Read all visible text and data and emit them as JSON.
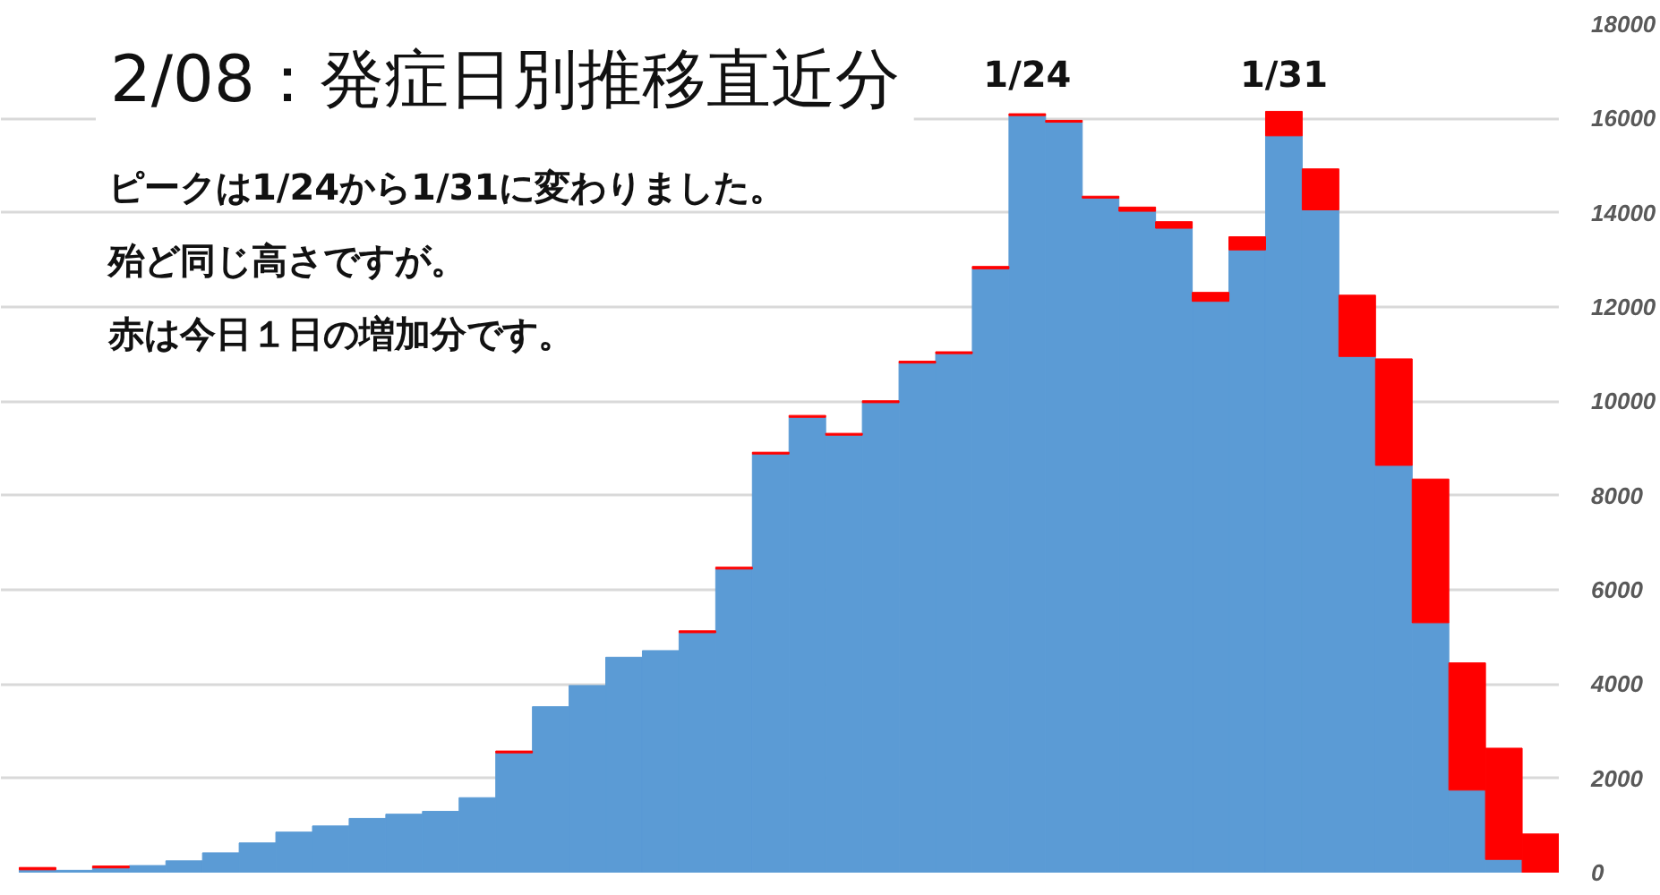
{
  "chart_data": {
    "type": "bar",
    "title": "2/08：発症日別推移直近分",
    "annotations": [
      "ピークは1/24から1/31に変わりました。",
      "殆ど同じ高さですが。",
      "赤は今日１日の増加分です。"
    ],
    "categories": [
      null,
      null,
      null,
      null,
      null,
      null,
      null,
      null,
      null,
      null,
      null,
      null,
      null,
      null,
      null,
      null,
      null,
      null,
      null,
      null,
      null,
      null,
      null,
      null,
      null,
      null,
      null,
      "1/24",
      null,
      null,
      null,
      null,
      null,
      null,
      "1/31",
      null,
      null,
      null,
      null,
      null,
      null,
      null
    ],
    "stacked": true,
    "series": [
      {
        "color": "#5b9bd5",
        "values": [
          60,
          50,
          100,
          150,
          250,
          420,
          630,
          860,
          990,
          1150,
          1240,
          1300,
          1590,
          2540,
          3520,
          3970,
          4570,
          4710,
          5090,
          6440,
          8880,
          9660,
          9280,
          9970,
          10810,
          11010,
          12810,
          16060,
          15920,
          14310,
          14030,
          13670,
          12120,
          13210,
          15630,
          14060,
          10950,
          8640,
          5300,
          1750,
          280,
          null
        ]
      },
      {
        "color": "#ff0000",
        "values": [
          50,
          null,
          40,
          null,
          null,
          null,
          null,
          null,
          null,
          null,
          null,
          null,
          null,
          40,
          null,
          null,
          null,
          null,
          40,
          40,
          40,
          40,
          40,
          40,
          40,
          40,
          50,
          40,
          40,
          40,
          90,
          140,
          190,
          280,
          520,
          870,
          1300,
          2260,
          3050,
          2700,
          2360,
          820
        ]
      }
    ],
    "ylim": [
      0,
      18000
    ],
    "yticks": [
      0,
      2000,
      4000,
      6000,
      8000,
      10000,
      12000,
      14000,
      16000,
      18000
    ],
    "grid": "y"
  }
}
